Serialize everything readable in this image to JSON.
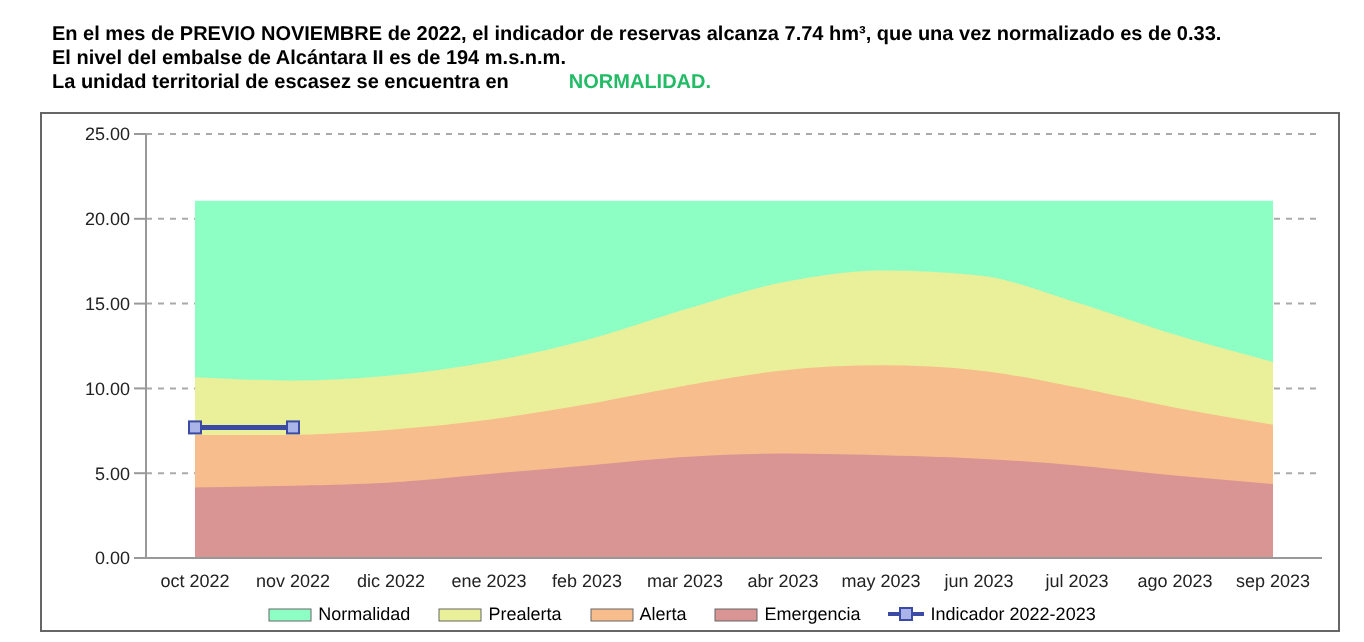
{
  "chart_data": {
    "type": "area",
    "title": "En el mes de PREVIO NOVIEMBRE de 2022, el indicador de reservas alcanza 7.74 hm³, que una vez normalizado es de 0.33.",
    "subtitle": "El nivel del embalse de Alcántara II es de 194 m.s.n.m.",
    "annotations": [
      "La unidad territorial de escasez se encuentra en",
      "NORMALIDAD."
    ],
    "categories": [
      "oct 2022",
      "nov 2022",
      "dic 2022",
      "ene 2023",
      "feb 2023",
      "mar 2023",
      "abr 2023",
      "may 2023",
      "jun 2023",
      "jul 2023",
      "ago 2023",
      "sep 2023"
    ],
    "series": [
      {
        "name": "Normalidad",
        "color": "#8effc4",
        "values": [
          21,
          21,
          21,
          21,
          21,
          21,
          21,
          21,
          21,
          21,
          21,
          21
        ]
      },
      {
        "name": "Prealerta",
        "color": "#eaef9a",
        "values": [
          10.6,
          10.4,
          10.7,
          11.5,
          12.8,
          14.6,
          16.2,
          16.9,
          16.6,
          15.0,
          13.1,
          11.5
        ]
      },
      {
        "name": "Alerta",
        "color": "#f7bd8c",
        "values": [
          7.2,
          7.2,
          7.5,
          8.1,
          9.0,
          10.1,
          11.0,
          11.3,
          11.0,
          10.0,
          8.8,
          7.8
        ]
      },
      {
        "name": "Emergencia",
        "color": "#d99494",
        "values": [
          4.1,
          4.2,
          4.4,
          4.9,
          5.4,
          5.9,
          6.1,
          6.0,
          5.8,
          5.4,
          4.8,
          4.3
        ]
      },
      {
        "name": "Indicador 2022-2023",
        "type": "line",
        "color": "#3b4aa5",
        "marker": "square",
        "values": [
          7.7,
          7.7,
          null,
          null,
          null,
          null,
          null,
          null,
          null,
          null,
          null,
          null
        ]
      }
    ],
    "ylim": [
      0,
      25
    ],
    "yticks": [
      {
        "value": 0,
        "label": "0.00"
      },
      {
        "value": 5,
        "label": "5.00"
      },
      {
        "value": 10,
        "label": "10.00"
      },
      {
        "value": 15,
        "label": "15.00"
      },
      {
        "value": 20,
        "label": "20.00"
      },
      {
        "value": 25,
        "label": "25.00"
      }
    ],
    "grid": "y",
    "legend": "bottom"
  }
}
